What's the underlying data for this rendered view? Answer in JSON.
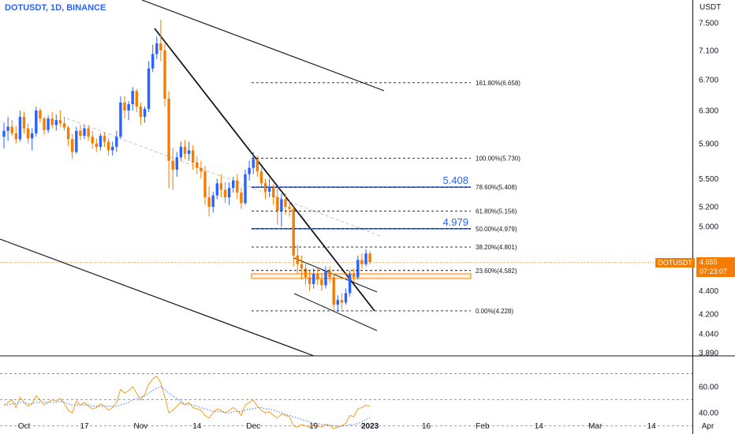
{
  "header": {
    "symbol_title": "DOTUSDT, 1D, BINANCE"
  },
  "price_scale": {
    "unit": "USDT",
    "ticks": [
      "7.500",
      "7.100",
      "6.700",
      "6.300",
      "5.900",
      "5.500",
      "5.200",
      "5.000",
      "4.400",
      "4.200",
      "4.040",
      "3.890"
    ],
    "current_symbol": "DOTUSDT",
    "current_price": "4.655",
    "countdown": "07:23:07",
    "tag_color": "#f57c00"
  },
  "rsi_scale": {
    "ticks": [
      "60.00",
      "40.00"
    ]
  },
  "time_axis": {
    "labels": [
      "Oct",
      "17",
      "Nov",
      "14",
      "Dec",
      "19",
      "2023",
      "16",
      "Feb",
      "14",
      "Mar",
      "14",
      "Apr"
    ]
  },
  "fib": {
    "levels": [
      "161.80%(6.658)",
      "100.00%(5.730)",
      "78.60%(5.408)",
      "61.80%(5.156)",
      "50.00%(4.979)",
      "38.20%(4.801)",
      "23.60%(4.582)",
      "0.00%(4.228)"
    ],
    "big_labels": [
      "5.408",
      "4.979"
    ]
  },
  "colors": {
    "up": "#2962ff",
    "down": "#f57c00",
    "rsi": "#f89f1c",
    "rsi_ma": "#5b8def"
  },
  "chart_data": {
    "type": "candlestick",
    "symbol": "DOTUSDT",
    "interval": "1D",
    "ohlc": [
      [
        5.98,
        6.15,
        5.84,
        6.05
      ],
      [
        6.05,
        6.22,
        5.93,
        6.1
      ],
      [
        6.1,
        6.18,
        5.99,
        6.02
      ],
      [
        6.02,
        6.11,
        5.9,
        5.95
      ],
      [
        5.95,
        6.3,
        5.92,
        6.22
      ],
      [
        6.22,
        6.28,
        6.02,
        6.08
      ],
      [
        6.08,
        6.14,
        5.9,
        5.96
      ],
      [
        5.96,
        6.08,
        5.82,
        6.02
      ],
      [
        6.02,
        6.35,
        5.98,
        6.3
      ],
      [
        6.3,
        6.33,
        6.15,
        6.2
      ],
      [
        6.2,
        6.22,
        6.0,
        6.06
      ],
      [
        6.06,
        6.24,
        6.02,
        6.2
      ],
      [
        6.2,
        6.28,
        6.08,
        6.12
      ],
      [
        6.12,
        6.25,
        6.05,
        6.18
      ],
      [
        6.18,
        6.3,
        6.1,
        6.14
      ],
      [
        6.14,
        6.22,
        6.05,
        6.09
      ],
      [
        6.09,
        6.11,
        5.87,
        5.95
      ],
      [
        5.95,
        6.01,
        5.72,
        5.8
      ],
      [
        5.8,
        6.1,
        5.78,
        6.05
      ],
      [
        6.05,
        6.12,
        5.94,
        5.99
      ],
      [
        5.99,
        6.12,
        5.95,
        6.08
      ],
      [
        6.08,
        6.12,
        5.93,
        5.98
      ],
      [
        5.98,
        6.05,
        5.84,
        5.9
      ],
      [
        5.9,
        5.96,
        5.8,
        5.86
      ],
      [
        5.86,
        6.02,
        5.82,
        5.99
      ],
      [
        5.99,
        6.03,
        5.86,
        5.92
      ],
      [
        5.92,
        5.96,
        5.76,
        5.82
      ],
      [
        5.82,
        5.92,
        5.76,
        5.86
      ],
      [
        5.86,
        6.05,
        5.8,
        5.98
      ],
      [
        5.98,
        6.48,
        5.96,
        6.4
      ],
      [
        6.4,
        6.48,
        6.2,
        6.3
      ],
      [
        6.3,
        6.42,
        6.18,
        6.38
      ],
      [
        6.38,
        6.6,
        6.3,
        6.55
      ],
      [
        6.55,
        6.58,
        6.28,
        6.35
      ],
      [
        6.35,
        6.4,
        6.12,
        6.22
      ],
      [
        6.22,
        6.35,
        6.15,
        6.32
      ],
      [
        6.32,
        6.95,
        6.28,
        6.85
      ],
      [
        6.85,
        7.18,
        6.8,
        7.05
      ],
      [
        7.05,
        7.3,
        6.98,
        7.2
      ],
      [
        7.2,
        7.55,
        6.95,
        7.1
      ],
      [
        7.1,
        7.22,
        6.35,
        6.45
      ],
      [
        6.45,
        6.55,
        5.4,
        5.7
      ],
      [
        5.7,
        5.85,
        5.38,
        5.6
      ],
      [
        5.6,
        5.8,
        5.52,
        5.74
      ],
      [
        5.74,
        5.92,
        5.7,
        5.86
      ],
      [
        5.86,
        5.94,
        5.72,
        5.78
      ],
      [
        5.78,
        5.92,
        5.7,
        5.82
      ],
      [
        5.82,
        5.88,
        5.6,
        5.68
      ],
      [
        5.68,
        5.75,
        5.55,
        5.62
      ],
      [
        5.62,
        5.7,
        5.5,
        5.58
      ],
      [
        5.58,
        5.64,
        5.22,
        5.3
      ],
      [
        5.3,
        5.42,
        5.1,
        5.2
      ],
      [
        5.2,
        5.36,
        5.14,
        5.32
      ],
      [
        5.32,
        5.5,
        5.28,
        5.45
      ],
      [
        5.45,
        5.55,
        5.3,
        5.38
      ],
      [
        5.38,
        5.46,
        5.24,
        5.3
      ],
      [
        5.3,
        5.46,
        5.22,
        5.4
      ],
      [
        5.4,
        5.52,
        5.35,
        5.48
      ],
      [
        5.48,
        5.55,
        5.28,
        5.35
      ],
      [
        5.35,
        5.4,
        5.18,
        5.24
      ],
      [
        5.24,
        5.6,
        5.22,
        5.55
      ],
      [
        5.55,
        5.7,
        5.48,
        5.62
      ],
      [
        5.62,
        5.8,
        5.55,
        5.72
      ],
      [
        5.72,
        5.76,
        5.52,
        5.58
      ],
      [
        5.58,
        5.62,
        5.4,
        5.45
      ],
      [
        5.45,
        5.5,
        5.28,
        5.36
      ],
      [
        5.36,
        5.5,
        5.3,
        5.4
      ],
      [
        5.4,
        5.44,
        5.22,
        5.3
      ],
      [
        5.3,
        5.4,
        5.02,
        5.16
      ],
      [
        5.16,
        5.34,
        5.0,
        5.28
      ],
      [
        5.28,
        5.34,
        5.12,
        5.2
      ],
      [
        5.2,
        5.26,
        5.1,
        5.18
      ],
      [
        5.18,
        5.2,
        4.62,
        4.72
      ],
      [
        4.72,
        4.82,
        4.55,
        4.64
      ],
      [
        4.64,
        4.72,
        4.5,
        4.6
      ],
      [
        4.6,
        4.66,
        4.45,
        4.52
      ],
      [
        4.52,
        4.58,
        4.4,
        4.46
      ],
      [
        4.46,
        4.6,
        4.42,
        4.55
      ],
      [
        4.55,
        4.6,
        4.45,
        4.5
      ],
      [
        4.5,
        4.56,
        4.4,
        4.45
      ],
      [
        4.45,
        4.62,
        4.42,
        4.58
      ],
      [
        4.58,
        4.62,
        4.47,
        4.52
      ],
      [
        4.52,
        4.55,
        4.22,
        4.28
      ],
      [
        4.28,
        4.36,
        4.22,
        4.32
      ],
      [
        4.32,
        4.38,
        4.24,
        4.3
      ],
      [
        4.3,
        4.42,
        4.28,
        4.38
      ],
      [
        4.38,
        4.58,
        4.35,
        4.55
      ],
      [
        4.55,
        4.6,
        4.48,
        4.52
      ],
      [
        4.52,
        4.72,
        4.5,
        4.68
      ],
      [
        4.68,
        4.74,
        4.6,
        4.64
      ],
      [
        4.64,
        4.78,
        4.62,
        4.74
      ],
      [
        4.74,
        4.76,
        4.64,
        4.66
      ]
    ],
    "fib_levels": [
      {
        "ratio": 1.618,
        "price": 6.658
      },
      {
        "ratio": 1.0,
        "price": 5.73
      },
      {
        "ratio": 0.786,
        "price": 5.408
      },
      {
        "ratio": 0.618,
        "price": 5.156
      },
      {
        "ratio": 0.5,
        "price": 4.979
      },
      {
        "ratio": 0.382,
        "price": 4.801
      },
      {
        "ratio": 0.236,
        "price": 4.582
      },
      {
        "ratio": 0.0,
        "price": 4.228
      }
    ],
    "horizontal_lines": [
      5.408,
      4.979
    ],
    "last_price": 4.655,
    "price_axis": {
      "scale": "log",
      "range": [
        3.89,
        7.8
      ]
    },
    "rsi": {
      "values": [
        46,
        48,
        50,
        44,
        52,
        48,
        45,
        47,
        53,
        50,
        46,
        48,
        50,
        49,
        51,
        47,
        42,
        40,
        49,
        46,
        48,
        45,
        43,
        44,
        47,
        45,
        42,
        44,
        48,
        58,
        55,
        57,
        60,
        55,
        50,
        54,
        62,
        66,
        68,
        63,
        52,
        40,
        42,
        45,
        48,
        46,
        48,
        44,
        43,
        42,
        38,
        36,
        40,
        43,
        42,
        40,
        42,
        44,
        42,
        38,
        46,
        48,
        50,
        45,
        42,
        40,
        41,
        38,
        36,
        39,
        38,
        37,
        30,
        29,
        31,
        30,
        29,
        31,
        30,
        29,
        31,
        30,
        28,
        29,
        30,
        32,
        38,
        37,
        43,
        44,
        46,
        45
      ],
      "ma": [
        46,
        46,
        47,
        47,
        48,
        48,
        47,
        47,
        48,
        48,
        48,
        48,
        48,
        48,
        49,
        48,
        47,
        46,
        46,
        46,
        46,
        46,
        45,
        45,
        45,
        45,
        45,
        45,
        45,
        46,
        47,
        48,
        50,
        51,
        52,
        53,
        55,
        57,
        59,
        60,
        58,
        55,
        53,
        51,
        49,
        47,
        46,
        46,
        45,
        44,
        43,
        42,
        41,
        41,
        41,
        40,
        40,
        41,
        41,
        41,
        42,
        43,
        43,
        44,
        44,
        43,
        43,
        42,
        41,
        40,
        39,
        38,
        37,
        36,
        35,
        34,
        33,
        32,
        32,
        31,
        31,
        31,
        30,
        30,
        30,
        30,
        31,
        31,
        32,
        33,
        35,
        36
      ],
      "levels": [
        70,
        50,
        30
      ],
      "range": [
        25,
        80
      ]
    }
  }
}
